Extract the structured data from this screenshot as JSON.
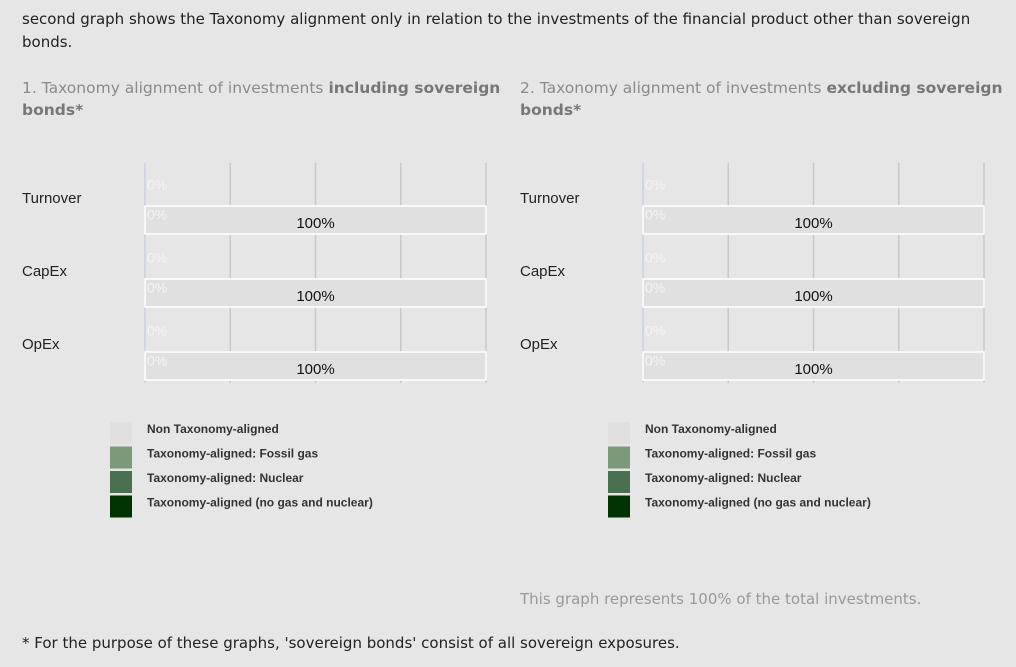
{
  "intro": "second graph shows the Taxonomy alignment only in relation to the investments of the financial product other than sovereign bonds.",
  "chart_data": [
    {
      "type": "bar",
      "title": "1. Taxonomy alignment of investments ",
      "title_bold": "including sovereign bonds*",
      "categories": [
        "Turnover",
        "CapEx",
        "OpEx"
      ],
      "series": [
        {
          "name": "Non Taxonomy-aligned",
          "color": "#e0e0e0",
          "values": [
            100,
            100,
            100
          ],
          "value_labels": [
            "100%",
            "100%",
            "100%"
          ]
        },
        {
          "name": "Taxonomy-aligned: Fossil gas",
          "color": "#7a9a7a",
          "values": [
            0,
            0,
            0
          ],
          "value_labels": [
            "0%",
            "0%",
            "0%"
          ]
        },
        {
          "name": "Taxonomy-aligned: Nuclear",
          "color": "#4a7050",
          "values": [
            0,
            0,
            0
          ]
        },
        {
          "name": "Taxonomy-aligned (no gas and nuclear)",
          "color": "#003300",
          "values": [
            0,
            0,
            0
          ],
          "value_labels": [
            "0%",
            "0%",
            "0%"
          ]
        }
      ],
      "xlim": [
        0,
        100
      ],
      "xticks": [
        0,
        25,
        50,
        75,
        100
      ],
      "grid": true
    },
    {
      "type": "bar",
      "title": "2. Taxonomy alignment of investments ",
      "title_bold": "excluding sovereign bonds*",
      "categories": [
        "Turnover",
        "CapEx",
        "OpEx"
      ],
      "series": [
        {
          "name": "Non Taxonomy-aligned",
          "color": "#e0e0e0",
          "values": [
            100,
            100,
            100
          ],
          "value_labels": [
            "100%",
            "100%",
            "100%"
          ]
        },
        {
          "name": "Taxonomy-aligned: Fossil gas",
          "color": "#7a9a7a",
          "values": [
            0,
            0,
            0
          ],
          "value_labels": [
            "0%",
            "0%",
            "0%"
          ]
        },
        {
          "name": "Taxonomy-aligned: Nuclear",
          "color": "#4a7050",
          "values": [
            0,
            0,
            0
          ]
        },
        {
          "name": "Taxonomy-aligned (no gas and nuclear)",
          "color": "#003300",
          "values": [
            0,
            0,
            0
          ],
          "value_labels": [
            "0%",
            "0%",
            "0%"
          ]
        }
      ],
      "xlim": [
        0,
        100
      ],
      "xticks": [
        0,
        25,
        50,
        75,
        100
      ],
      "grid": true,
      "note": "This graph represents 100% of the total investments."
    }
  ],
  "footnote": "* For the purpose of these graphs, 'sovereign bonds' consist of all sovereign exposures."
}
